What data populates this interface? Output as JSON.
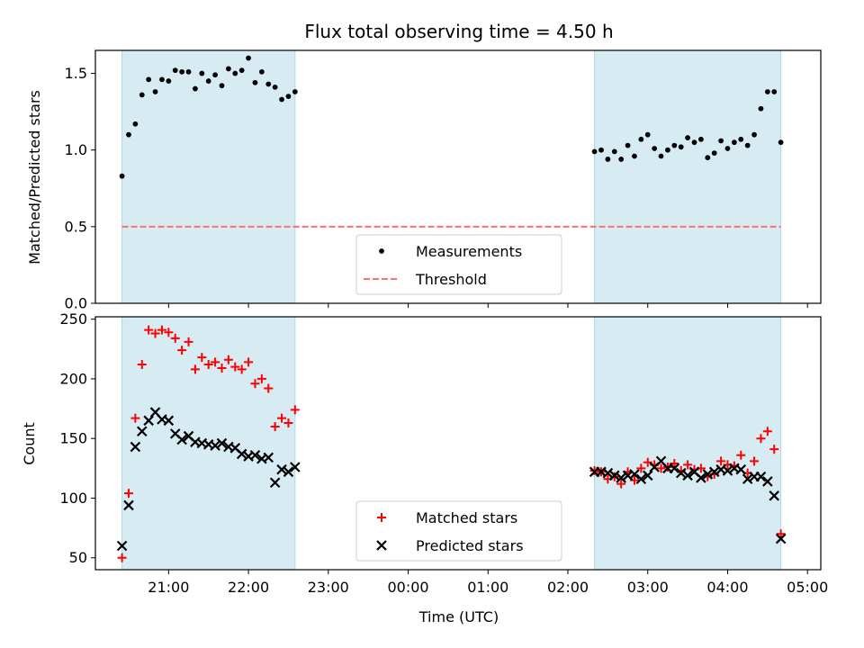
{
  "chart_data": {
    "type": "scatter",
    "title": "Flux total observing time = 4.50 h",
    "xlabel": "Time (UTC)",
    "x_tick_labels": [
      "21:00",
      "22:00",
      "23:00",
      "00:00",
      "01:00",
      "02:00",
      "03:00",
      "04:00",
      "05:00"
    ],
    "shaded_intervals": [
      [
        "20:25",
        "22:35"
      ],
      [
        "02:20",
        "04:40"
      ]
    ],
    "shade_color": "#add8e6",
    "panels": [
      {
        "ylabel": "Matched/Predicted stars",
        "ylim": [
          0,
          1.65
        ],
        "y_tick_labels": [
          "0.0",
          "0.5",
          "1.0",
          "1.5"
        ],
        "series": [
          {
            "name": "Measurements",
            "marker": "dot",
            "color": "#000000",
            "points": [
              [
                "20:25",
                0.83
              ],
              [
                "20:30",
                1.1
              ],
              [
                "20:35",
                1.17
              ],
              [
                "20:40",
                1.36
              ],
              [
                "20:45",
                1.46
              ],
              [
                "20:50",
                1.38
              ],
              [
                "20:55",
                1.46
              ],
              [
                "21:00",
                1.45
              ],
              [
                "21:05",
                1.52
              ],
              [
                "21:10",
                1.51
              ],
              [
                "21:15",
                1.51
              ],
              [
                "21:20",
                1.4
              ],
              [
                "21:25",
                1.5
              ],
              [
                "21:30",
                1.45
              ],
              [
                "21:35",
                1.49
              ],
              [
                "21:40",
                1.42
              ],
              [
                "21:45",
                1.53
              ],
              [
                "21:50",
                1.5
              ],
              [
                "21:55",
                1.52
              ],
              [
                "22:00",
                1.6
              ],
              [
                "22:05",
                1.44
              ],
              [
                "22:10",
                1.51
              ],
              [
                "22:15",
                1.43
              ],
              [
                "22:20",
                1.41
              ],
              [
                "22:25",
                1.33
              ],
              [
                "22:30",
                1.35
              ],
              [
                "22:35",
                1.38
              ],
              [
                "02:20",
                0.99
              ],
              [
                "02:25",
                1.0
              ],
              [
                "02:30",
                0.94
              ],
              [
                "02:35",
                0.99
              ],
              [
                "02:40",
                0.94
              ],
              [
                "02:45",
                1.03
              ],
              [
                "02:50",
                0.96
              ],
              [
                "02:55",
                1.07
              ],
              [
                "03:00",
                1.1
              ],
              [
                "03:05",
                1.01
              ],
              [
                "03:10",
                0.96
              ],
              [
                "03:15",
                1.0
              ],
              [
                "03:20",
                1.03
              ],
              [
                "03:25",
                1.02
              ],
              [
                "03:30",
                1.08
              ],
              [
                "03:35",
                1.05
              ],
              [
                "03:40",
                1.07
              ],
              [
                "03:45",
                0.95
              ],
              [
                "03:50",
                0.98
              ],
              [
                "03:55",
                1.06
              ],
              [
                "04:00",
                1.01
              ],
              [
                "04:05",
                1.05
              ],
              [
                "04:10",
                1.07
              ],
              [
                "04:15",
                1.03
              ],
              [
                "04:20",
                1.1
              ],
              [
                "04:25",
                1.27
              ],
              [
                "04:30",
                1.38
              ],
              [
                "04:35",
                1.38
              ],
              [
                "04:40",
                1.05
              ]
            ]
          },
          {
            "name": "Threshold",
            "type": "hline",
            "style": "dashed",
            "color": "#ff7070",
            "y": 0.5,
            "x_range": [
              "20:25",
              "04:40"
            ]
          }
        ],
        "legend": {
          "position": "bottom-center"
        }
      },
      {
        "ylabel": "Count",
        "ylim": [
          40,
          252
        ],
        "y_tick_labels": [
          "50",
          "100",
          "150",
          "200",
          "250"
        ],
        "series": [
          {
            "name": "Matched stars",
            "marker": "plus",
            "color": "#ff0000",
            "points": [
              [
                "20:25",
                50
              ],
              [
                "20:30",
                104
              ],
              [
                "20:35",
                167
              ],
              [
                "20:40",
                212
              ],
              [
                "20:45",
                241
              ],
              [
                "20:50",
                238
              ],
              [
                "20:55",
                241
              ],
              [
                "21:00",
                239
              ],
              [
                "21:05",
                234
              ],
              [
                "21:10",
                224
              ],
              [
                "21:15",
                231
              ],
              [
                "21:20",
                208
              ],
              [
                "21:25",
                218
              ],
              [
                "21:30",
                212
              ],
              [
                "21:35",
                214
              ],
              [
                "21:40",
                209
              ],
              [
                "21:45",
                216
              ],
              [
                "21:50",
                210
              ],
              [
                "21:55",
                208
              ],
              [
                "22:00",
                214
              ],
              [
                "22:05",
                196
              ],
              [
                "22:10",
                200
              ],
              [
                "22:15",
                192
              ],
              [
                "22:20",
                160
              ],
              [
                "22:25",
                167
              ],
              [
                "22:30",
                163
              ],
              [
                "22:35",
                174
              ],
              [
                "02:20",
                123
              ],
              [
                "02:25",
                122
              ],
              [
                "02:30",
                116
              ],
              [
                "02:35",
                118
              ],
              [
                "02:40",
                112
              ],
              [
                "02:45",
                122
              ],
              [
                "02:50",
                115
              ],
              [
                "02:55",
                125
              ],
              [
                "03:00",
                130
              ],
              [
                "03:05",
                128
              ],
              [
                "03:10",
                125
              ],
              [
                "03:15",
                126
              ],
              [
                "03:20",
                129
              ],
              [
                "03:25",
                123
              ],
              [
                "03:30",
                128
              ],
              [
                "03:35",
                124
              ],
              [
                "03:40",
                125
              ],
              [
                "03:45",
                118
              ],
              [
                "03:50",
                120
              ],
              [
                "03:55",
                131
              ],
              [
                "04:00",
                128
              ],
              [
                "04:05",
                127
              ],
              [
                "04:10",
                136
              ],
              [
                "04:15",
                121
              ],
              [
                "04:20",
                131
              ],
              [
                "04:25",
                150
              ],
              [
                "04:30",
                156
              ],
              [
                "04:35",
                141
              ],
              [
                "04:40",
                70
              ]
            ]
          },
          {
            "name": "Predicted stars",
            "marker": "x",
            "color": "#000000",
            "points": [
              [
                "20:25",
                60
              ],
              [
                "20:30",
                94
              ],
              [
                "20:35",
                143
              ],
              [
                "20:40",
                156
              ],
              [
                "20:45",
                165
              ],
              [
                "20:50",
                172
              ],
              [
                "20:55",
                166
              ],
              [
                "21:00",
                165
              ],
              [
                "21:05",
                154
              ],
              [
                "21:10",
                149
              ],
              [
                "21:15",
                152
              ],
              [
                "21:20",
                147
              ],
              [
                "21:25",
                146
              ],
              [
                "21:30",
                145
              ],
              [
                "21:35",
                144
              ],
              [
                "21:40",
                146
              ],
              [
                "21:45",
                143
              ],
              [
                "21:50",
                142
              ],
              [
                "21:55",
                137
              ],
              [
                "22:00",
                135
              ],
              [
                "22:05",
                136
              ],
              [
                "22:10",
                133
              ],
              [
                "22:15",
                134
              ],
              [
                "22:20",
                113
              ],
              [
                "22:25",
                124
              ],
              [
                "22:30",
                122
              ],
              [
                "22:35",
                126
              ],
              [
                "02:20",
                122
              ],
              [
                "02:25",
                122
              ],
              [
                "02:30",
                121
              ],
              [
                "02:35",
                119
              ],
              [
                "02:40",
                117
              ],
              [
                "02:45",
                119
              ],
              [
                "02:50",
                120
              ],
              [
                "02:55",
                116
              ],
              [
                "03:00",
                119
              ],
              [
                "03:05",
                126
              ],
              [
                "03:10",
                131
              ],
              [
                "03:15",
                125
              ],
              [
                "03:20",
                125
              ],
              [
                "03:25",
                121
              ],
              [
                "03:30",
                119
              ],
              [
                "03:35",
                122
              ],
              [
                "03:40",
                117
              ],
              [
                "03:45",
                120
              ],
              [
                "03:50",
                122
              ],
              [
                "03:55",
                124
              ],
              [
                "04:00",
                123
              ],
              [
                "04:05",
                125
              ],
              [
                "04:10",
                124
              ],
              [
                "04:15",
                116
              ],
              [
                "04:20",
                118
              ],
              [
                "04:25",
                118
              ],
              [
                "04:30",
                114
              ],
              [
                "04:35",
                102
              ],
              [
                "04:40",
                66
              ]
            ]
          }
        ],
        "legend": {
          "position": "bottom-center"
        }
      }
    ]
  }
}
